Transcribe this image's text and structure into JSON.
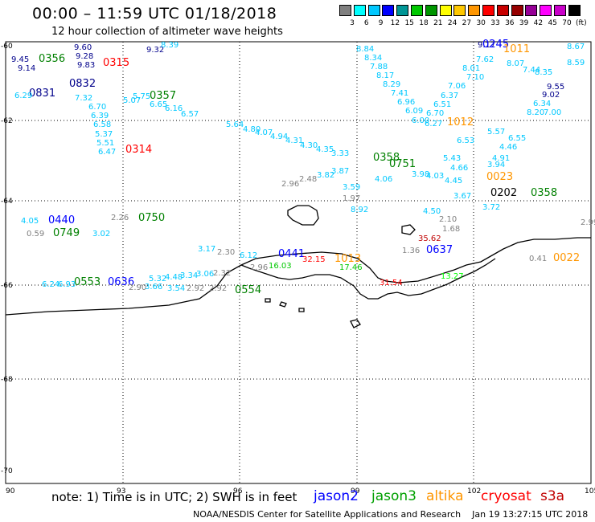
{
  "header": {
    "title": "00:00 – 11:59 UTC 01/18/2018",
    "subtitle": "12 hour collection of altimeter wave heights"
  },
  "scale": {
    "colors": [
      "#808080",
      "#00ffff",
      "#00c8ff",
      "#0000ff",
      "#009696",
      "#00c800",
      "#009600",
      "#ffff00",
      "#ffc800",
      "#ff9600",
      "#ff0000",
      "#c80000",
      "#960000",
      "#960096",
      "#ff00ff",
      "#c800c8",
      "#000000"
    ],
    "labels": [
      "3",
      "6",
      "9",
      "12",
      "15",
      "18",
      "21",
      "24",
      "27",
      "30",
      "33",
      "36",
      "39",
      "42",
      "45",
      "70",
      "(ft)"
    ]
  },
  "axes": {
    "x_ticks": [
      "90",
      "93",
      "96",
      "99",
      "102",
      "105"
    ],
    "y_ticks": [
      "-60",
      "-62",
      "-64",
      "-66",
      "-68",
      "-70"
    ]
  },
  "footer": {
    "note": "note: 1) Time is in UTC; 2) SWH is in feet",
    "satellites": [
      {
        "name": "jason2",
        "color": "#0000ff"
      },
      {
        "name": "jason3",
        "color": "#00a000"
      },
      {
        "name": "altika",
        "color": "#ff9600"
      },
      {
        "name": "cryosat",
        "color": "#ff0000"
      },
      {
        "name": "s3a",
        "color": "#c00000"
      }
    ],
    "credit": "NOAA/NESDIS Center for Satellite Applications and Research    Jan 19 13:27:15 UTC 2018"
  },
  "labels": [
    {
      "t": "9.60",
      "c": "#00008b"
    },
    {
      "t": "9.28",
      "c": "#00008b"
    },
    {
      "t": "9.83",
      "c": "#00008b"
    },
    {
      "t": "9.45",
      "c": "#00008b"
    },
    {
      "t": "0356",
      "c": "#008000"
    },
    {
      "t": "9.14",
      "c": "#00008b"
    },
    {
      "t": "0315",
      "c": "#ff0000"
    },
    {
      "t": "9.32",
      "c": "#00008b"
    },
    {
      "t": "8.39",
      "c": "#00c8ff"
    },
    {
      "t": "0832",
      "c": "#00008b"
    },
    {
      "t": "0831",
      "c": "#00008b"
    },
    {
      "t": "0357",
      "c": "#008000"
    },
    {
      "t": "6.29",
      "c": "#00c8ff"
    },
    {
      "t": "7.32",
      "c": "#00c8ff"
    },
    {
      "t": "6.70",
      "c": "#00c8ff"
    },
    {
      "t": "6.39",
      "c": "#00c8ff"
    },
    {
      "t": "6.58",
      "c": "#00c8ff"
    },
    {
      "t": "5.37",
      "c": "#00c8ff"
    },
    {
      "t": "5.51",
      "c": "#00c8ff"
    },
    {
      "t": "6.47",
      "c": "#00c8ff"
    },
    {
      "t": "0314",
      "c": "#ff0000"
    },
    {
      "t": "6.65",
      "c": "#00c8ff"
    },
    {
      "t": "6.16",
      "c": "#00c8ff"
    },
    {
      "t": "6.57",
      "c": "#00c8ff"
    },
    {
      "t": "5.07",
      "c": "#00c8ff"
    },
    {
      "t": "5.75",
      "c": "#00c8ff"
    },
    {
      "t": "5.64",
      "c": "#00c8ff"
    },
    {
      "t": "4.80",
      "c": "#00c8ff"
    },
    {
      "t": "4.07",
      "c": "#00c8ff"
    },
    {
      "t": "4.94",
      "c": "#00c8ff"
    },
    {
      "t": "4.31",
      "c": "#00c8ff"
    },
    {
      "t": "4.30",
      "c": "#00c8ff"
    },
    {
      "t": "4.35",
      "c": "#00c8ff"
    },
    {
      "t": "3.33",
      "c": "#00c8ff"
    },
    {
      "t": "2.96",
      "c": "#808080"
    },
    {
      "t": "2.48",
      "c": "#808080"
    },
    {
      "t": "3.82",
      "c": "#00c8ff"
    },
    {
      "t": "3.87",
      "c": "#00c8ff"
    },
    {
      "t": "3.59",
      "c": "#00c8ff"
    },
    {
      "t": "1.97",
      "c": "#808080"
    },
    {
      "t": "8.92",
      "c": "#00c8ff"
    },
    {
      "t": "8.84",
      "c": "#00c8ff"
    },
    {
      "t": "8.34",
      "c": "#00c8ff"
    },
    {
      "t": "7.88",
      "c": "#00c8ff"
    },
    {
      "t": "8.17",
      "c": "#00c8ff"
    },
    {
      "t": "8.29",
      "c": "#00c8ff"
    },
    {
      "t": "7.41",
      "c": "#00c8ff"
    },
    {
      "t": "6.96",
      "c": "#00c8ff"
    },
    {
      "t": "6.09",
      "c": "#00c8ff"
    },
    {
      "t": "6.00",
      "c": "#00c8ff"
    },
    {
      "t": "0358",
      "c": "#008000"
    },
    {
      "t": "0751",
      "c": "#008000"
    },
    {
      "t": "4.06",
      "c": "#00c8ff"
    },
    {
      "t": "3.98",
      "c": "#00c8ff"
    },
    {
      "t": "4.03",
      "c": "#00c8ff"
    },
    {
      "t": "9.17",
      "c": "#00008b"
    },
    {
      "t": "0245",
      "c": "#0000ff"
    },
    {
      "t": "1011",
      "c": "#ff9600"
    },
    {
      "t": "7.62",
      "c": "#00c8ff"
    },
    {
      "t": "8.01",
      "c": "#00c8ff"
    },
    {
      "t": "7.10",
      "c": "#00c8ff"
    },
    {
      "t": "7.06",
      "c": "#00c8ff"
    },
    {
      "t": "6.37",
      "c": "#00c8ff"
    },
    {
      "t": "6.51",
      "c": "#00c8ff"
    },
    {
      "t": "6.70",
      "c": "#00c8ff"
    },
    {
      "t": "1012",
      "c": "#ff9600"
    },
    {
      "t": "6.27",
      "c": "#00c8ff"
    },
    {
      "t": "6.53",
      "c": "#00c8ff"
    },
    {
      "t": "5.43",
      "c": "#00c8ff"
    },
    {
      "t": "4.66",
      "c": "#00c8ff"
    },
    {
      "t": "4.45",
      "c": "#00c8ff"
    },
    {
      "t": "3.67",
      "c": "#00c8ff"
    },
    {
      "t": "4.50",
      "c": "#00c8ff"
    },
    {
      "t": "2.10",
      "c": "#808080"
    },
    {
      "t": "1.68",
      "c": "#808080"
    },
    {
      "t": "35.62",
      "c": "#c00000"
    },
    {
      "t": "1.36",
      "c": "#808080"
    },
    {
      "t": "0637",
      "c": "#0000ff"
    },
    {
      "t": "8.67",
      "c": "#00c8ff"
    },
    {
      "t": "8.59",
      "c": "#00c8ff"
    },
    {
      "t": "8.07",
      "c": "#00c8ff"
    },
    {
      "t": "7.44",
      "c": "#00c8ff"
    },
    {
      "t": "8.35",
      "c": "#00c8ff"
    },
    {
      "t": "9.55",
      "c": "#00008b"
    },
    {
      "t": "9.02",
      "c": "#00008b"
    },
    {
      "t": "6.34",
      "c": "#00c8ff"
    },
    {
      "t": "8.20",
      "c": "#00c8ff"
    },
    {
      "t": "7.00",
      "c": "#00c8ff"
    },
    {
      "t": "5.57",
      "c": "#00c8ff"
    },
    {
      "t": "6.55",
      "c": "#00c8ff"
    },
    {
      "t": "4.46",
      "c": "#00c8ff"
    },
    {
      "t": "4.91",
      "c": "#00c8ff"
    },
    {
      "t": "3.94",
      "c": "#00c8ff"
    },
    {
      "t": "0023",
      "c": "#ff9600"
    },
    {
      "t": "0202",
      "c": "#000000"
    },
    {
      "t": "0358",
      "c": "#008000"
    },
    {
      "t": "3.72",
      "c": "#00c8ff"
    },
    {
      "t": "2.99",
      "c": "#808080"
    },
    {
      "t": "4.05",
      "c": "#00c8ff"
    },
    {
      "t": "0440",
      "c": "#0000ff"
    },
    {
      "t": "0.59",
      "c": "#808080"
    },
    {
      "t": "0749",
      "c": "#008000"
    },
    {
      "t": "3.02",
      "c": "#00c8ff"
    },
    {
      "t": "2.26",
      "c": "#808080"
    },
    {
      "t": "0750",
      "c": "#008000"
    },
    {
      "t": "3.17",
      "c": "#00c8ff"
    },
    {
      "t": "2.30",
      "c": "#808080"
    },
    {
      "t": "6.12",
      "c": "#00c8ff"
    },
    {
      "t": "0441",
      "c": "#0000ff"
    },
    {
      "t": "2.96",
      "c": "#808080"
    },
    {
      "t": "16.03",
      "c": "#00c800"
    },
    {
      "t": "32.15",
      "c": "#ff0000"
    },
    {
      "t": "1013",
      "c": "#ff9600"
    },
    {
      "t": "17.46",
      "c": "#00c800"
    },
    {
      "t": "31.54",
      "c": "#ff0000"
    },
    {
      "t": "0.41",
      "c": "#808080"
    },
    {
      "t": "0022",
      "c": "#ff9600"
    },
    {
      "t": "13.27",
      "c": "#00ff00"
    },
    {
      "t": "0553",
      "c": "#008000"
    },
    {
      "t": "0636",
      "c": "#0000ff"
    },
    {
      "t": "5.32",
      "c": "#00c8ff"
    },
    {
      "t": "4.48",
      "c": "#00c8ff"
    },
    {
      "t": "3.34",
      "c": "#00c8ff"
    },
    {
      "t": "3.06",
      "c": "#00c8ff"
    },
    {
      "t": "2.32",
      "c": "#808080"
    },
    {
      "t": "2.90",
      "c": "#808080"
    },
    {
      "t": "3.66",
      "c": "#00c8ff"
    },
    {
      "t": "3.54",
      "c": "#00c8ff"
    },
    {
      "t": "2.92",
      "c": "#808080"
    },
    {
      "t": "2.92",
      "c": "#808080"
    },
    {
      "t": "0554",
      "c": "#008000"
    },
    {
      "t": "6.24",
      "c": "#00c8ff"
    },
    {
      "t": "6.93",
      "c": "#00c8ff"
    }
  ]
}
